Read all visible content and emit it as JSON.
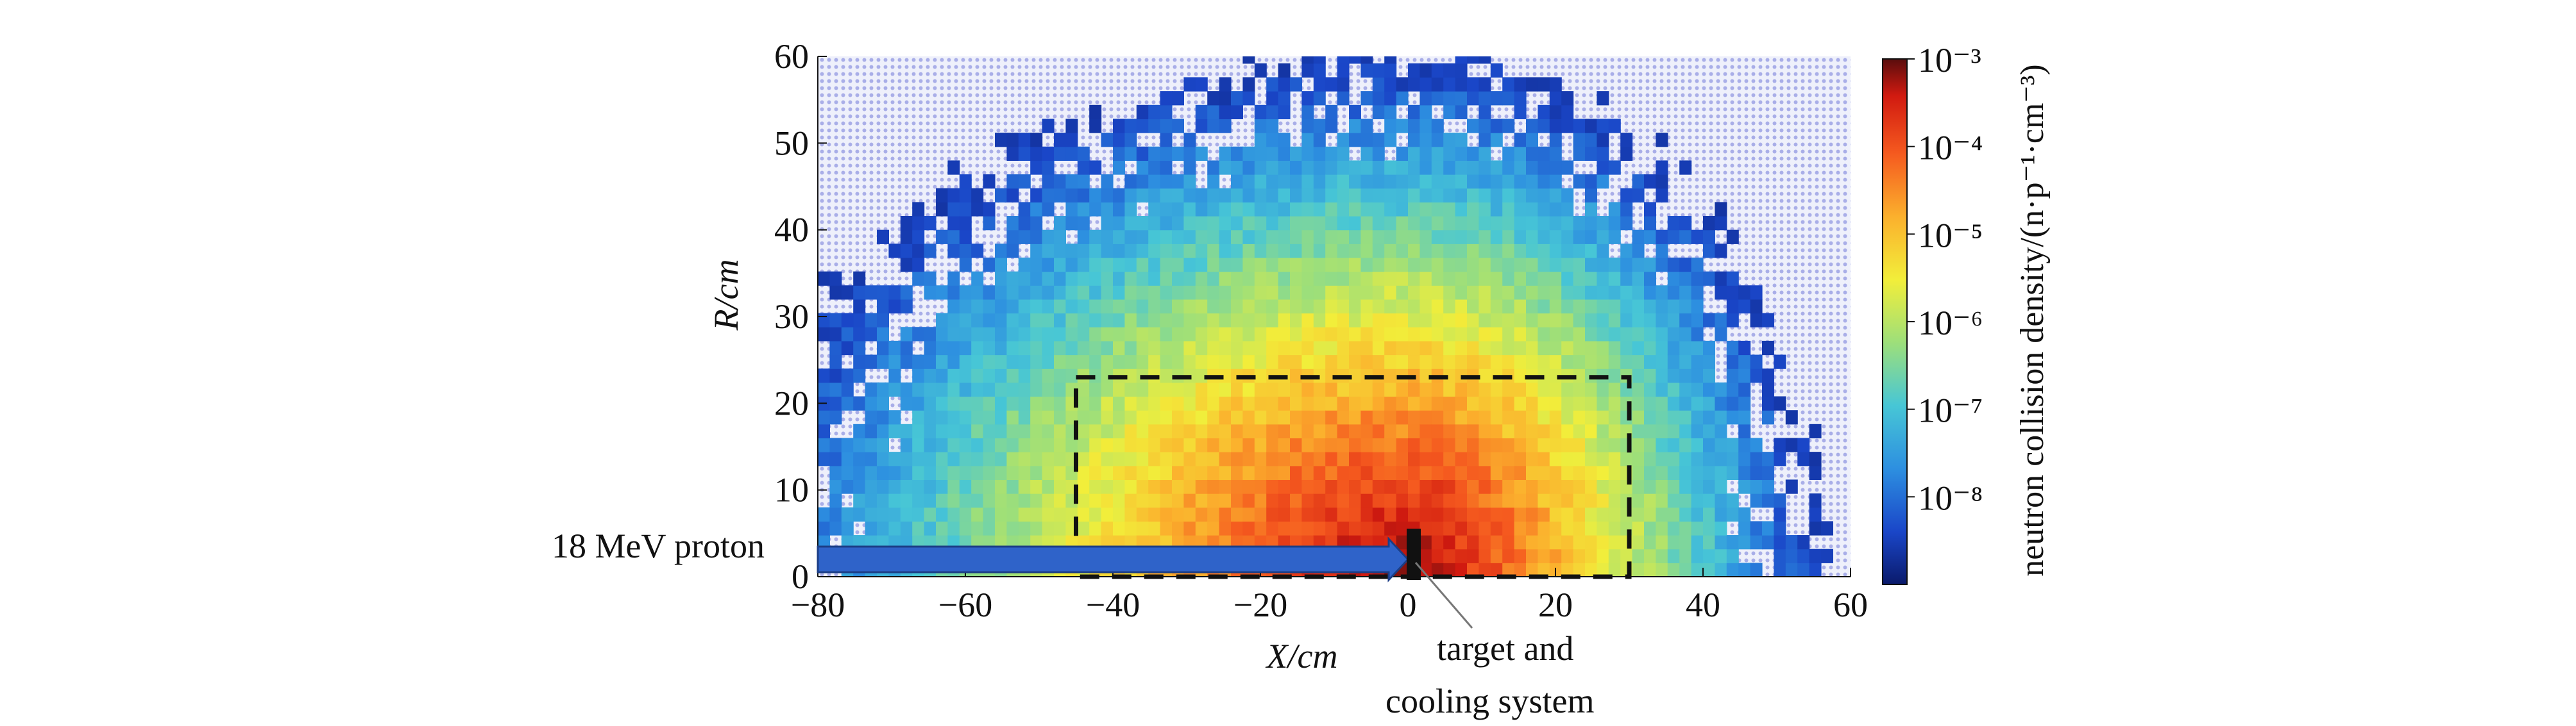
{
  "chart_data": {
    "type": "heatmap",
    "xlabel": "X/cm",
    "ylabel": "R/cm",
    "xlim": [
      -80,
      60
    ],
    "ylim": [
      0,
      60
    ],
    "x_ticks": [
      -80,
      -60,
      -40,
      -20,
      0,
      20,
      40,
      60
    ],
    "x_tick_labels": [
      "−80",
      "−60",
      "−40",
      "−20",
      "0",
      "20",
      "40",
      "60"
    ],
    "y_ticks": [
      0,
      10,
      20,
      30,
      40,
      50,
      60
    ],
    "y_tick_labels": [
      "0",
      "10",
      "20",
      "30",
      "40",
      "50",
      "60"
    ],
    "colorbar": {
      "label": "neutron collision density/(n·p⁻¹·cm⁻³)",
      "scale": "log",
      "min": 1e-09,
      "max": 0.001,
      "tick_values": [
        0.001,
        0.0001,
        1e-05,
        1e-06,
        1e-07,
        1e-08
      ],
      "tick_labels": [
        "10⁻³",
        "10⁻⁴",
        "10⁻⁵",
        "10⁻⁶",
        "10⁻⁷",
        "10⁻⁸"
      ],
      "colors": [
        "#0a1a6b",
        "#1a46c8",
        "#2d8fe0",
        "#47c6d6",
        "#9ddf7a",
        "#f2ee3a",
        "#fbb02d",
        "#f55a1f",
        "#d11a10",
        "#5a0d0d"
      ]
    },
    "grid": false,
    "background_grid_color": "#a9aee8",
    "source_position": {
      "x": 0,
      "r": 0
    },
    "source_peak_log10": -3.2,
    "density_field": {
      "description_free": true,
      "center_log10": -3.3,
      "decay_per_cm_x_forward": 0.14,
      "decay_per_cm_x_backward": 0.085,
      "decay_per_cm_r": 0.13,
      "cutoff_log10": -8.6
    },
    "dashed_region": {
      "x": [
        -45,
        30
      ],
      "r": [
        0,
        23
      ]
    },
    "beam": {
      "label": "18 MeV proton",
      "x_start": -80,
      "x_end": 0,
      "color": "#2f63c9"
    },
    "target": {
      "label_line1": "target and",
      "label_line2": "cooling system",
      "x": 0
    }
  }
}
